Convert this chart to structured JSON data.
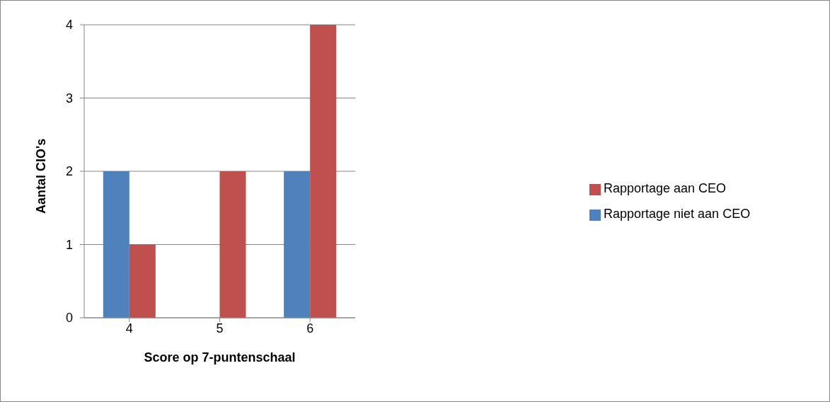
{
  "chart_data": {
    "type": "bar",
    "xlabel": "Score op 7-puntenschaal",
    "ylabel": "Aantal CIO's",
    "categories": [
      "4",
      "5",
      "6"
    ],
    "series": [
      {
        "name": "Rapportage niet aan CEO",
        "color": "#4f81bd",
        "values": [
          2,
          0,
          2
        ]
      },
      {
        "name": "Rapportage aan CEO",
        "color": "#c0504d",
        "values": [
          1,
          2,
          4
        ]
      }
    ],
    "ylim": [
      0,
      4
    ],
    "yticks": [
      0,
      1,
      2,
      3,
      4
    ],
    "grid": "y",
    "legend": "right"
  }
}
